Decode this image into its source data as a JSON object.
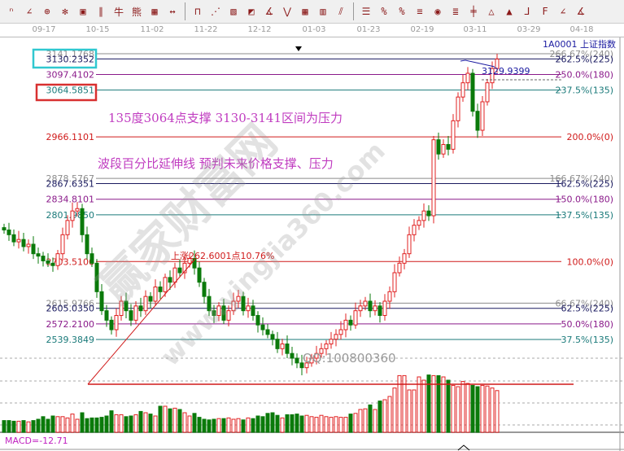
{
  "toolbar": {
    "icons": [
      "n2-icon",
      "angle-icon",
      "crosshair-target-icon",
      "snowflake-icon",
      "square-target-icon",
      "parallel-lines-icon",
      "bull-icon",
      "bear-icon",
      "calendar-icon",
      "arrow-width-icon",
      "rectangle-icon",
      "fan-lines-icon",
      "gann-box-icon",
      "gann-fan-icon",
      "angle-line-icon",
      "wave-icon",
      "grid-icon",
      "grid-box-icon",
      "parallel-channel-icon",
      "percent-grid-icon",
      "percent-line-icon",
      "percent-icon",
      "percent-level-icon",
      "gold-circle-icon",
      "gold-line-icon",
      "cycle-icon",
      "triangle-icon",
      "gold-ratio-icon",
      "j-line-icon",
      "f-line-icon",
      "gold-angle-icon",
      "gold-fan-icon"
    ]
  },
  "symbol": "1A0001 上证指数",
  "chart_data": {
    "type": "candlestick",
    "x_tick_labels": [
      "09-17",
      "10-15",
      "11-02",
      "11-22",
      "12-12",
      "01-03",
      "01-23",
      "02-19",
      "03-11",
      "03-29",
      "04-18"
    ],
    "closes": [
      2770,
      2760,
      2745,
      2750,
      2735,
      2740,
      2720,
      2715,
      2705,
      2700,
      2695,
      2720,
      2760,
      2790,
      2810,
      2815,
      2760,
      2720,
      2700,
      2640,
      2600,
      2580,
      2560,
      2590,
      2620,
      2600,
      2580,
      2610,
      2600,
      2630,
      2620,
      2650,
      2640,
      2670,
      2660,
      2690,
      2680,
      2700,
      2710,
      2690,
      2660,
      2630,
      2600,
      2590,
      2610,
      2580,
      2600,
      2620,
      2630,
      2600,
      2610,
      2590,
      2570,
      2560,
      2550,
      2540,
      2520,
      2530,
      2510,
      2500,
      2490,
      2480,
      2490,
      2500,
      2510,
      2520,
      2530,
      2540,
      2550,
      2560,
      2580,
      2570,
      2600,
      2610,
      2620,
      2600,
      2610,
      2590,
      2620,
      2640,
      2680,
      2700,
      2720,
      2760,
      2780,
      2790,
      2810,
      2800,
      2960,
      2930,
      2950,
      2940,
      3000,
      3050,
      3080,
      3100,
      3020,
      2980,
      3040,
      3080,
      3110,
      3130
    ],
    "volumes": [
      18,
      18,
      17,
      17,
      18,
      16,
      18,
      20,
      24,
      20,
      25,
      24,
      24,
      22,
      28,
      20,
      30,
      21,
      22,
      22,
      23,
      25,
      33,
      27,
      27,
      24,
      25,
      27,
      32,
      30,
      28,
      25,
      40,
      40,
      36,
      37,
      35,
      30,
      25,
      29,
      23,
      20,
      19,
      20,
      21,
      21,
      22,
      20,
      21,
      19,
      22,
      21,
      25,
      24,
      29,
      30,
      26,
      22,
      27,
      27,
      28,
      25,
      26,
      24,
      23,
      26,
      24,
      23,
      24,
      23,
      23,
      28,
      29,
      35,
      36,
      42,
      35,
      48,
      50,
      55,
      68,
      87,
      87,
      65,
      65,
      85,
      80,
      88,
      87,
      87,
      85,
      80,
      72,
      70,
      78,
      75,
      72,
      70,
      72,
      71,
      68,
      64
    ],
    "fib_levels": [
      {
        "price": "3141.1768",
        "pct": "266.67%(240)",
        "color": "#8c8c8c"
      },
      {
        "price": "3130.2352",
        "pct": "262.5%(225)",
        "color": "#1a1a60"
      },
      {
        "price": "3097.4102",
        "pct": "250.0%(180)",
        "color": "#8a1a8a"
      },
      {
        "price": "3064.5851",
        "pct": "237.5%(135)",
        "color": "#1a7a7a"
      },
      {
        "price": "2966.1101",
        "pct": "200.0%(0)",
        "color": "#d01a1a"
      },
      {
        "price": "2878.5767",
        "pct": "166.67%(240)",
        "color": "#8c8c8c"
      },
      {
        "price": "2867.6351",
        "pct": "162.5%(225)",
        "color": "#1a1a60"
      },
      {
        "price": "2834.8101",
        "pct": "150.0%(180)",
        "color": "#8a1a8a"
      },
      {
        "price": "2801.9850",
        "pct": "137.5%(135)",
        "color": "#1a7a7a"
      },
      {
        "price": "2703.5100",
        "pct": "100.0%(0)",
        "color": "#d01a1a"
      },
      {
        "price": "2615.9766",
        "pct": "66.67%(240)",
        "color": "#8c8c8c"
      },
      {
        "price": "2605.0350",
        "pct": "62.5%(225)",
        "color": "#1a1a60"
      },
      {
        "price": "2572.2100",
        "pct": "50.0%(180)",
        "color": "#8a1a8a"
      },
      {
        "price": "2539.3849",
        "pct": "37.5%(135)",
        "color": "#1a7a7a"
      }
    ],
    "up_color": "#e02020",
    "down_color": "#0a7a0a",
    "peak_label": "3129.9399",
    "rise_label": "上涨262.6001点10.76%"
  },
  "annotations": {
    "line1": "135度3064点支撑   3130-3141区间为压力",
    "line2": "波段百分比延伸线  预判未来价格支撑、压力",
    "qq": "QQ:100800360"
  },
  "highlight_colors": {
    "resistance_box": "#30c8d0",
    "support_box": "#d83030"
  },
  "indicator": {
    "macd": "MACD=-12.71"
  },
  "watermark": {
    "cn": "赢家财富网",
    "url": "www.yingjia360.com"
  }
}
